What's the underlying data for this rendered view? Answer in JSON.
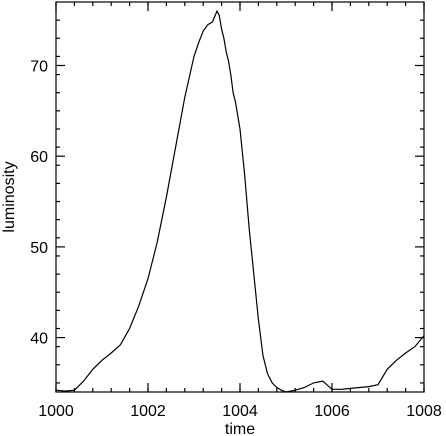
{
  "chart_data": {
    "type": "line",
    "title": "",
    "xlabel": "time",
    "ylabel": "luminosity",
    "xlim": [
      1000,
      1008
    ],
    "ylim": [
      34,
      77
    ],
    "grid": false,
    "legend": "none",
    "x_ticks": [
      1000,
      1002,
      1004,
      1006,
      1008
    ],
    "x_tick_labels": [
      "1000",
      "1002",
      "1004",
      "1006",
      "1008"
    ],
    "y_ticks": [
      40,
      50,
      60,
      70
    ],
    "y_tick_labels": [
      "40",
      "50",
      "60",
      "70"
    ],
    "series": [
      {
        "color": "#000000",
        "x": [
          1000.0,
          1000.2,
          1000.4,
          1000.6,
          1000.8,
          1001.0,
          1001.2,
          1001.4,
          1001.6,
          1001.8,
          1002.0,
          1002.2,
          1002.4,
          1002.6,
          1002.8,
          1003.0,
          1003.1,
          1003.2,
          1003.3,
          1003.4,
          1003.5,
          1003.55,
          1003.6,
          1003.65,
          1003.7,
          1003.75,
          1003.8,
          1003.85,
          1003.9,
          1003.95,
          1004.0,
          1004.05,
          1004.1,
          1004.15,
          1004.2,
          1004.3,
          1004.4,
          1004.5,
          1004.6,
          1004.7,
          1004.8,
          1004.9,
          1005.0,
          1005.2,
          1005.4,
          1005.6,
          1005.8,
          1006.0,
          1006.2,
          1006.4,
          1006.6,
          1006.8,
          1007.0,
          1007.2,
          1007.4,
          1007.6,
          1007.8,
          1008.0
        ],
        "y": [
          34.2,
          34.1,
          34.2,
          35.2,
          36.5,
          37.5,
          38.3,
          39.2,
          41.0,
          43.5,
          46.5,
          50.5,
          55.5,
          61.0,
          66.5,
          71.0,
          72.5,
          73.8,
          74.5,
          74.8,
          76.0,
          75.5,
          74.0,
          73.0,
          71.5,
          70.5,
          69.0,
          67.0,
          66.0,
          64.5,
          63.0,
          60.5,
          58.0,
          55.0,
          52.0,
          47.0,
          42.0,
          38.0,
          36.0,
          35.0,
          34.5,
          34.2,
          34.0,
          34.2,
          34.5,
          35.0,
          35.2,
          34.3,
          34.3,
          34.4,
          34.5,
          34.6,
          34.8,
          36.5,
          37.5,
          38.3,
          39.0,
          40.2
        ]
      }
    ]
  }
}
